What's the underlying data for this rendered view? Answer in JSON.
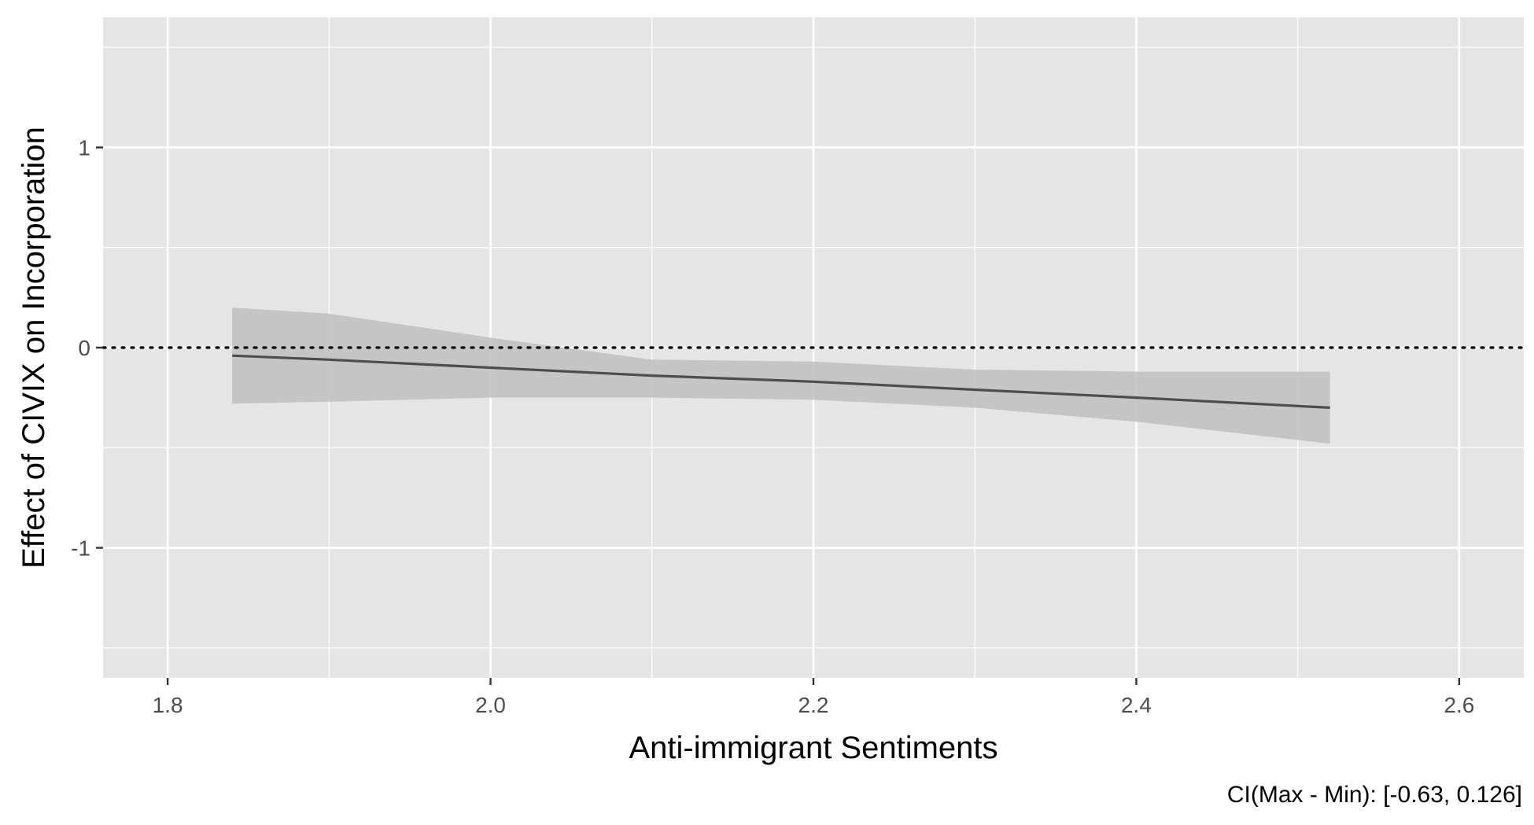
{
  "chart_data": {
    "type": "line",
    "xlabel": "Anti-immigrant Sentiments",
    "ylabel": "Effect of CIVIX on Incorporation",
    "caption": "CI(Max - Min): [-0.63, 0.126]",
    "xlim": [
      1.76,
      2.64
    ],
    "ylim": [
      -1.65,
      1.65
    ],
    "x_ticks": [
      1.8,
      2.0,
      2.2,
      2.4,
      2.6
    ],
    "x_tick_labels": [
      "1.8",
      "2.0",
      "2.2",
      "2.4",
      "2.6"
    ],
    "x_minor": [
      1.9,
      2.1,
      2.3,
      2.5
    ],
    "y_ticks": [
      -1,
      0,
      1
    ],
    "y_tick_labels": [
      "-1",
      "0",
      "1"
    ],
    "y_minor": [
      -1.5,
      -0.5,
      0.5,
      1.5
    ],
    "reference_line": {
      "y": 0,
      "style": "dotted"
    },
    "grid": true,
    "series": [
      {
        "x": [
          1.84,
          1.9,
          2.0,
          2.1,
          2.2,
          2.3,
          2.4,
          2.52
        ],
        "y": [
          -0.04,
          -0.06,
          -0.1,
          -0.14,
          -0.17,
          -0.21,
          -0.25,
          -0.3
        ],
        "ci_upper": [
          0.2,
          0.17,
          0.05,
          -0.06,
          -0.07,
          -0.11,
          -0.12,
          -0.12
        ],
        "ci_lower": [
          -0.28,
          -0.27,
          -0.25,
          -0.25,
          -0.26,
          -0.3,
          -0.37,
          -0.48
        ]
      }
    ],
    "colors": {
      "panel": "#e5e5e5",
      "grid": "#ffffff",
      "line": "#4d4d4d",
      "ribbon": "#bfbfbf",
      "reference": "#000000"
    }
  }
}
